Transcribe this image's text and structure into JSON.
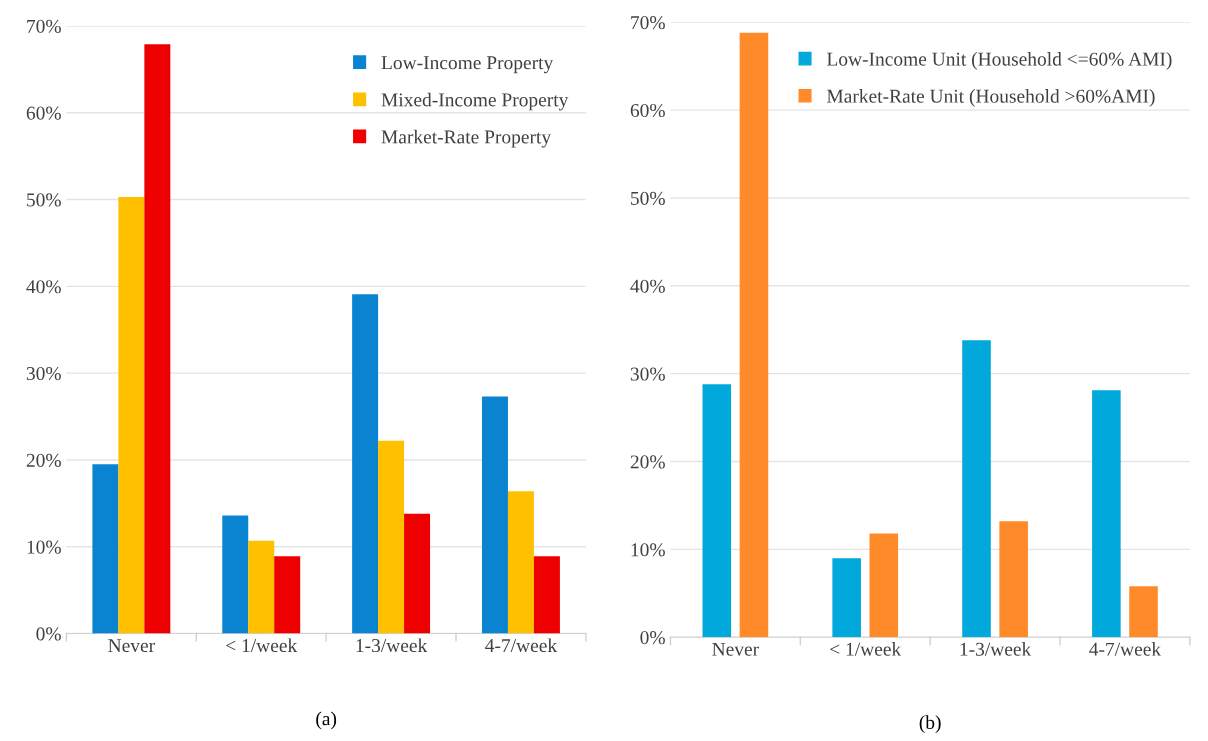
{
  "chart_data": [
    {
      "type": "bar",
      "categories": [
        "Never",
        "< 1/week",
        "1-3/week",
        "4-7/week"
      ],
      "xlabel": "(a)",
      "series": [
        {
          "name": "Low-Income Property",
          "color": "#0a84d0",
          "values": [
            19.5,
            13.6,
            39.1,
            27.3
          ]
        },
        {
          "name": "Mixed-Income Property",
          "color": "#ffc000",
          "values": [
            50.3,
            10.7,
            22.2,
            16.4
          ]
        },
        {
          "name": "Market-Rate Property",
          "color": "#ee0000",
          "values": [
            67.9,
            8.9,
            13.8,
            8.9
          ]
        }
      ],
      "ylim": [
        0,
        70
      ],
      "yticks": [
        {
          "value": 0,
          "label": "0%"
        },
        {
          "value": 10,
          "label": "10%"
        },
        {
          "value": 20,
          "label": "20%"
        },
        {
          "value": 30,
          "label": "30%"
        },
        {
          "value": 40,
          "label": "40%"
        },
        {
          "value": 50,
          "label": "50%"
        },
        {
          "value": 60,
          "label": "60%"
        },
        {
          "value": 70,
          "label": "70%"
        }
      ],
      "grid": "y",
      "legend": "top right"
    },
    {
      "type": "bar",
      "categories": [
        "Never",
        "< 1/week",
        "1-3/week",
        "4-7/week"
      ],
      "xlabel": "(b)",
      "series": [
        {
          "name": "Low-Income Unit (Household <=60% AMI)",
          "color": "#00a8dc",
          "values": [
            28.8,
            9.0,
            33.8,
            28.1
          ]
        },
        {
          "name": "Market-Rate Unit (Household >60%AMI)",
          "color": "#ff8a2a",
          "values": [
            68.8,
            11.8,
            13.2,
            5.8
          ]
        }
      ],
      "ylim": [
        0,
        70
      ],
      "yticks": [
        {
          "value": 0,
          "label": "0%"
        },
        {
          "value": 10,
          "label": "10%"
        },
        {
          "value": 20,
          "label": "20%"
        },
        {
          "value": 30,
          "label": "30%"
        },
        {
          "value": 40,
          "label": "40%"
        },
        {
          "value": 50,
          "label": "50%"
        },
        {
          "value": 60,
          "label": "60%"
        },
        {
          "value": 70,
          "label": "70%"
        }
      ],
      "grid": "y",
      "legend": "top right"
    }
  ]
}
